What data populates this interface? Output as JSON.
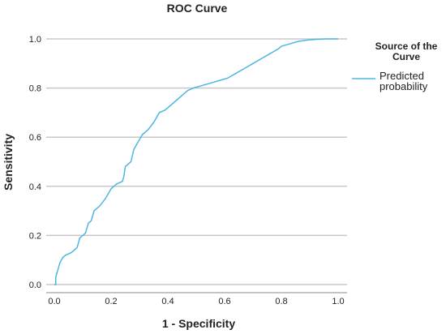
{
  "chart_data": {
    "type": "line",
    "title": "ROC Curve",
    "xlabel": "1 - Specificity",
    "ylabel": "Sensitivity",
    "xlim": [
      0.0,
      1.0
    ],
    "ylim": [
      0.0,
      1.0
    ],
    "xticks": [
      "0.0",
      "0.2",
      "0.4",
      "0.6",
      "0.8",
      "1.0"
    ],
    "yticks": [
      "0.0",
      "0.2",
      "0.4",
      "0.6",
      "0.8",
      "1.0"
    ],
    "grid": "horizontal",
    "legend": {
      "title_lines": [
        "Source of the",
        "Curve"
      ],
      "position": "right"
    },
    "series": [
      {
        "name": "Predicted probability",
        "label_lines": [
          "Predicted",
          "probability"
        ],
        "color": "#4FB6E3",
        "x": [
          0.0,
          0.005,
          0.005,
          0.01,
          0.015,
          0.02,
          0.03,
          0.04,
          0.06,
          0.08,
          0.09,
          0.1,
          0.11,
          0.12,
          0.13,
          0.14,
          0.16,
          0.18,
          0.2,
          0.22,
          0.24,
          0.245,
          0.25,
          0.27,
          0.28,
          0.29,
          0.31,
          0.33,
          0.35,
          0.36,
          0.37,
          0.39,
          0.41,
          0.43,
          0.45,
          0.47,
          0.49,
          0.52,
          0.55,
          0.58,
          0.61,
          0.64,
          0.67,
          0.7,
          0.73,
          0.76,
          0.79,
          0.8,
          0.83,
          0.86,
          0.89,
          0.92,
          0.96,
          1.0
        ],
        "y": [
          0.0,
          0.0,
          0.03,
          0.05,
          0.07,
          0.09,
          0.11,
          0.12,
          0.13,
          0.15,
          0.19,
          0.2,
          0.21,
          0.25,
          0.26,
          0.3,
          0.32,
          0.35,
          0.39,
          0.41,
          0.42,
          0.44,
          0.48,
          0.5,
          0.55,
          0.57,
          0.61,
          0.63,
          0.66,
          0.68,
          0.7,
          0.71,
          0.73,
          0.75,
          0.77,
          0.79,
          0.8,
          0.81,
          0.82,
          0.83,
          0.84,
          0.86,
          0.88,
          0.9,
          0.92,
          0.94,
          0.96,
          0.97,
          0.98,
          0.99,
          0.995,
          0.998,
          1.0,
          1.0
        ]
      }
    ]
  }
}
